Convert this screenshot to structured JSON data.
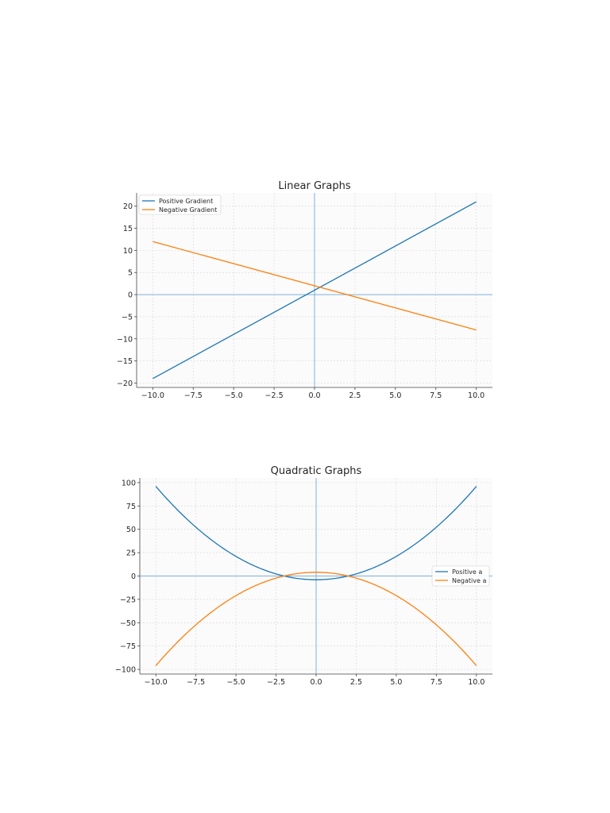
{
  "chart_data": [
    {
      "type": "line",
      "title": "Linear Graphs",
      "xlabel": "",
      "ylabel": "",
      "xlim": [
        -11,
        11
      ],
      "ylim": [
        -21,
        23
      ],
      "x_ticks": [
        -10,
        -7.5,
        -5,
        -2.5,
        0,
        2.5,
        5,
        7.5,
        10
      ],
      "x_tick_labels": [
        "−10.0",
        "−7.5",
        "−5.0",
        "−2.5",
        "0.0",
        "2.5",
        "5.0",
        "7.5",
        "10.0"
      ],
      "y_ticks": [
        -20,
        -15,
        -10,
        -5,
        0,
        5,
        10,
        15,
        20
      ],
      "y_tick_labels": [
        "−20",
        "−15",
        "−10",
        "−5",
        "0",
        "5",
        "10",
        "15",
        "20"
      ],
      "grid": true,
      "legend_position": "top-left",
      "series": [
        {
          "name": "Positive Gradient",
          "color": "#1f77b4",
          "x": [
            -10,
            10
          ],
          "y": [
            -19,
            21
          ]
        },
        {
          "name": "Negative Gradient",
          "color": "#ff7f0e",
          "x": [
            -10,
            10
          ],
          "y": [
            12,
            -8
          ]
        }
      ]
    },
    {
      "type": "line",
      "title": "Quadratic Graphs",
      "xlabel": "",
      "ylabel": "",
      "xlim": [
        -11,
        11
      ],
      "ylim": [
        -105,
        105
      ],
      "x_ticks": [
        -10,
        -7.5,
        -5,
        -2.5,
        0,
        2.5,
        5,
        7.5,
        10
      ],
      "x_tick_labels": [
        "−10.0",
        "−7.5",
        "−5.0",
        "−2.5",
        "0.0",
        "2.5",
        "5.0",
        "7.5",
        "10.0"
      ],
      "y_ticks": [
        -100,
        -75,
        -50,
        -25,
        0,
        25,
        50,
        75,
        100
      ],
      "y_tick_labels": [
        "−100",
        "−75",
        "−50",
        "−25",
        "0",
        "25",
        "50",
        "75",
        "100"
      ],
      "grid": true,
      "legend_position": "center-right",
      "series": [
        {
          "name": "Positive a",
          "color": "#1f77b4",
          "x": [
            -10,
            -8,
            -6,
            -4,
            -2,
            0,
            2,
            4,
            6,
            8,
            10
          ],
          "y": [
            96,
            60,
            32,
            12,
            0,
            -4,
            0,
            12,
            32,
            60,
            96
          ]
        },
        {
          "name": "Negative a",
          "color": "#ff7f0e",
          "x": [
            -10,
            -8,
            -6,
            -4,
            -2,
            0,
            2,
            4,
            6,
            8,
            10
          ],
          "y": [
            -96,
            -60,
            -32,
            -12,
            0,
            4,
            0,
            -12,
            -32,
            -60,
            -96
          ]
        }
      ]
    }
  ]
}
